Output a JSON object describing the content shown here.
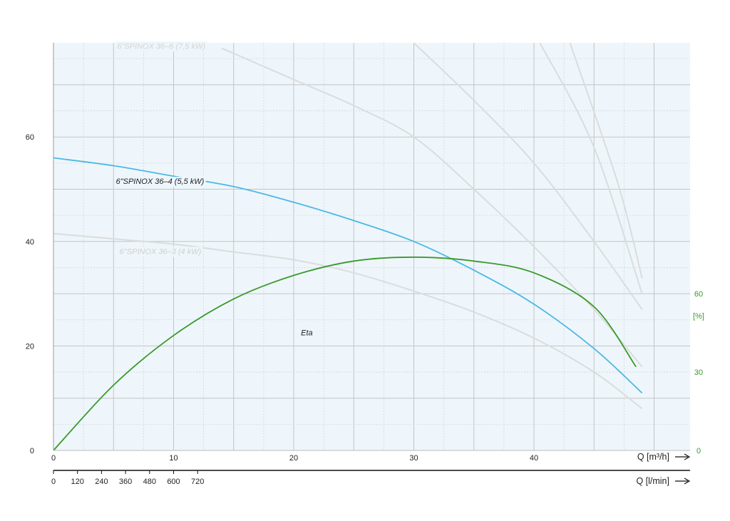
{
  "chart_data": {
    "type": "line",
    "xlabel_m3h": "Q [m³/h]",
    "xlabel_lmin": "Q [l/min]",
    "eta_unit": "[%]",
    "xlim_m3h": [
      0,
      52
    ],
    "ylim": [
      0,
      78
    ],
    "grid": true,
    "x_ticks_m3h": [
      "0",
      "10",
      "20",
      "30",
      "40"
    ],
    "x_ticks_lmin": [
      "0",
      "120",
      "240",
      "360",
      "480",
      "600",
      "720"
    ],
    "y_ticks": [
      "0",
      "20",
      "40",
      "60"
    ],
    "eta_ticks": [
      "0",
      "30",
      "60"
    ],
    "eta_scale": {
      "max_percent": 90,
      "y_equivalent": 30
    },
    "colors": {
      "active": "#4cb8e6",
      "eta": "#3a9a2a",
      "inactive": "#dcdcdc",
      "grid_major": "#c4c4c4",
      "grid_minor": "#cfd8e0",
      "plot_bg": "#eef6fb"
    },
    "series": [
      {
        "name": "6\"SPINOX 36–4 (5,5 kW)",
        "role": "active",
        "x": [
          0,
          5,
          10,
          15,
          20,
          25,
          30,
          35,
          40,
          45,
          49
        ],
        "y": [
          56,
          54.5,
          52.5,
          50.5,
          47.5,
          44,
          40,
          34.5,
          28,
          19.5,
          11
        ]
      },
      {
        "name": "6\"SPINOX 36–3 (4 kW)",
        "role": "inactive",
        "x": [
          0,
          5,
          10,
          15,
          20,
          25,
          30,
          35,
          40,
          45,
          49
        ],
        "y": [
          41.5,
          40.5,
          39.5,
          38,
          36.5,
          34,
          30.5,
          26.5,
          21.5,
          15,
          8
        ]
      },
      {
        "name": "6\"SPINOX 36–6 (7,5 kW)",
        "role": "inactive",
        "x": [
          14,
          20,
          25,
          30,
          35,
          40,
          45,
          49
        ],
        "y": [
          77,
          71,
          66,
          60,
          50,
          39,
          27,
          16
        ]
      },
      {
        "name": "",
        "role": "inactive",
        "x": [
          30,
          35,
          40,
          45,
          49
        ],
        "y": [
          78,
          67,
          55,
          40,
          27
        ]
      },
      {
        "name": "",
        "role": "inactive",
        "x": [
          40.5,
          45,
          49
        ],
        "y": [
          78,
          58,
          30
        ]
      },
      {
        "name": "",
        "role": "inactive",
        "x": [
          43,
          47,
          49
        ],
        "y": [
          78,
          51,
          33
        ]
      },
      {
        "name": "Eta",
        "role": "eta",
        "unit": "%",
        "x": [
          0,
          5,
          10,
          15,
          20,
          25,
          30,
          35,
          40,
          45,
          48.5
        ],
        "y": [
          0,
          25,
          44,
          58,
          67,
          72.5,
          74,
          72.5,
          68,
          55,
          32
        ]
      }
    ]
  }
}
